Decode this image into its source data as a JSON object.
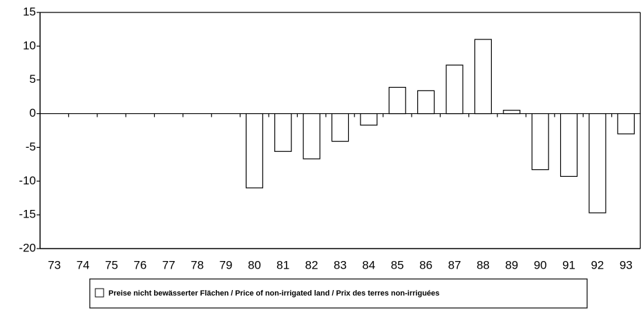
{
  "chart_data": {
    "type": "bar",
    "categories": [
      "73",
      "74",
      "75",
      "76",
      "77",
      "78",
      "79",
      "80",
      "81",
      "82",
      "83",
      "84",
      "85",
      "86",
      "87",
      "88",
      "89",
      "90",
      "91",
      "92",
      "93"
    ],
    "series": [
      {
        "name": "Preise nicht bewässerter Flächen / Price of non-irrigated land / Prix des terres non-irriguées",
        "color": "#ffffff",
        "values": [
          null,
          null,
          null,
          null,
          null,
          null,
          null,
          -11,
          -5.6,
          -6.7,
          -4.1,
          -1.7,
          3.9,
          3.4,
          7.2,
          11,
          0.5,
          -8.3,
          -9.3,
          -14.7,
          -3
        ]
      }
    ],
    "ylim": [
      -20,
      15
    ],
    "yticks": [
      -20,
      -15,
      -10,
      -5,
      0,
      5,
      10,
      15
    ],
    "grid": false,
    "legend": "bottom"
  }
}
